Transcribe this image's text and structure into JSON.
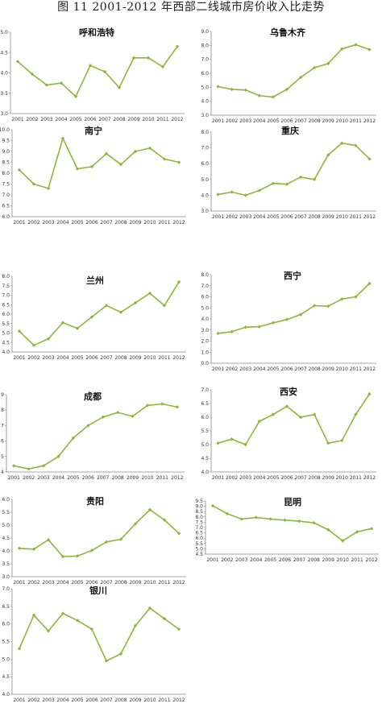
{
  "figure_title": "图 11   2001-2012 年西部二线城市房价收入比走势",
  "style": {
    "line_color": "#8DB73A",
    "axis_color": "#888888"
  },
  "chart_data": [
    {
      "type": "line",
      "title": "呼和浩特",
      "x": [
        "2001",
        "2002",
        "2003",
        "2004",
        "2005",
        "2006",
        "2007",
        "2008",
        "2009",
        "2010",
        "2011",
        "2012"
      ],
      "series": [
        {
          "values": [
            4.28,
            3.97,
            3.7,
            3.75,
            3.42,
            4.18,
            4.03,
            3.64,
            4.37,
            4.37,
            4.15,
            4.65
          ]
        }
      ],
      "ylim": [
        3.0,
        5.0
      ],
      "yticks": [
        "3.0",
        "3.5",
        "4.0",
        "4.5",
        "5.0"
      ],
      "grid": false
    },
    {
      "type": "line",
      "title": "乌鲁木齐",
      "x": [
        "2001",
        "2002",
        "2003",
        "2004",
        "2005",
        "2006",
        "2007",
        "2008",
        "2009",
        "2010",
        "2011",
        "2012"
      ],
      "series": [
        {
          "values": [
            5.05,
            4.85,
            4.8,
            4.4,
            4.3,
            4.85,
            5.7,
            6.4,
            6.7,
            7.75,
            8.05,
            7.7
          ]
        }
      ],
      "ylim": [
        3.0,
        9.0
      ],
      "yticks": [
        "3.0",
        "4.0",
        "5.0",
        "6.0",
        "7.0",
        "8.0",
        "9.0"
      ],
      "grid": false
    },
    {
      "type": "line",
      "title": "南宁",
      "x": [
        "2001",
        "2002",
        "2003",
        "2004",
        "2005",
        "2006",
        "2007",
        "2008",
        "2009",
        "2010",
        "2011",
        "2012"
      ],
      "series": [
        {
          "values": [
            8.15,
            7.5,
            7.3,
            9.6,
            8.2,
            8.3,
            8.9,
            8.4,
            9.0,
            9.15,
            8.65,
            8.5
          ]
        }
      ],
      "ylim": [
        6.0,
        10.0
      ],
      "yticks": [
        "6.0",
        "6.5",
        "7.0",
        "7.5",
        "8.0",
        "8.5",
        "9.0",
        "9.5",
        "10.0"
      ],
      "grid": false
    },
    {
      "type": "line",
      "title": "重庆",
      "x": [
        "2001",
        "2002",
        "2003",
        "2004",
        "2005",
        "2006",
        "2007",
        "2008",
        "2009",
        "2010",
        "2011",
        "2012"
      ],
      "series": [
        {
          "values": [
            4.05,
            4.2,
            4.0,
            4.3,
            4.75,
            4.7,
            5.15,
            5.0,
            6.55,
            7.3,
            7.15,
            6.3
          ]
        }
      ],
      "ylim": [
        3.0,
        8.0
      ],
      "yticks": [
        "3.0",
        "4.0",
        "5.0",
        "6.0",
        "7.0",
        "8.0"
      ],
      "grid": false
    },
    {
      "type": "line",
      "title": "兰州",
      "x": [
        "2001",
        "2002",
        "2003",
        "2004",
        "2005",
        "2006",
        "2007",
        "2008",
        "2009",
        "2010",
        "2011",
        "2012"
      ],
      "series": [
        {
          "values": [
            5.1,
            4.35,
            4.7,
            5.55,
            5.25,
            5.85,
            6.45,
            6.1,
            6.6,
            7.1,
            6.45,
            7.7
          ]
        }
      ],
      "ylim": [
        4.0,
        8.0
      ],
      "yticks": [
        "4.0",
        "4.5",
        "5.0",
        "5.5",
        "6.0",
        "6.5",
        "7.0",
        "7.5",
        "8.0"
      ],
      "grid": false
    },
    {
      "type": "line",
      "title": "西宁",
      "x": [
        "2001",
        "2002",
        "2003",
        "2004",
        "2005",
        "2006",
        "2007",
        "2008",
        "2009",
        "2010",
        "2011",
        "2012"
      ],
      "series": [
        {
          "values": [
            2.7,
            2.85,
            3.25,
            3.3,
            3.65,
            3.95,
            4.4,
            5.2,
            5.15,
            5.8,
            6.0,
            7.2
          ]
        }
      ],
      "ylim": [
        0.0,
        8.0
      ],
      "yticks": [
        "0.0",
        "1.0",
        "2.0",
        "3.0",
        "4.0",
        "5.0",
        "6.0",
        "7.0",
        "8.0"
      ],
      "grid": false
    },
    {
      "type": "line",
      "title": "成都",
      "x": [
        "2001",
        "2002",
        "2003",
        "2004",
        "2005",
        "2006",
        "2007",
        "2008",
        "2009",
        "2010",
        "2011",
        "2012"
      ],
      "series": [
        {
          "values": [
            4.4,
            4.2,
            4.4,
            5.0,
            6.2,
            7.0,
            7.55,
            7.85,
            7.6,
            8.3,
            8.4,
            8.2
          ]
        }
      ],
      "ylim": [
        4.0,
        9.0
      ],
      "yticks": [
        "4",
        "5",
        "6",
        "7",
        "8",
        "9"
      ],
      "grid": false
    },
    {
      "type": "line",
      "title": "西安",
      "x": [
        "2001",
        "2002",
        "2003",
        "2004",
        "2005",
        "2006",
        "2007",
        "2008",
        "2009",
        "2010",
        "2011",
        "2012"
      ],
      "series": [
        {
          "values": [
            5.05,
            5.2,
            5.0,
            5.85,
            6.1,
            6.4,
            6.0,
            6.1,
            5.05,
            5.15,
            6.1,
            6.85
          ]
        }
      ],
      "ylim": [
        4.0,
        7.0
      ],
      "yticks": [
        "4.0",
        "4.5",
        "5.0",
        "5.5",
        "6.0",
        "6.5",
        "7.0"
      ],
      "grid": false
    },
    {
      "type": "line",
      "title": "贵阳",
      "x": [
        "2001",
        "2002",
        "2003",
        "2004",
        "2005",
        "2006",
        "2007",
        "2008",
        "2009",
        "2010",
        "2011",
        "2012"
      ],
      "series": [
        {
          "values": [
            4.1,
            4.07,
            4.43,
            3.78,
            3.8,
            4.02,
            4.35,
            4.45,
            5.05,
            5.6,
            5.2,
            4.68
          ]
        }
      ],
      "ylim": [
        3.0,
        6.0
      ],
      "yticks": [
        "3.0",
        "3.5",
        "4.0",
        "4.5",
        "5.0",
        "5.5",
        "6.0"
      ],
      "grid": false
    },
    {
      "type": "line",
      "title": "昆明",
      "x": [
        "2001",
        "2002",
        "2003",
        "2004",
        "2005",
        "2006",
        "2007",
        "2008",
        "2009",
        "2010",
        "2011",
        "2012"
      ],
      "series": [
        {
          "values": [
            9.05,
            8.3,
            7.8,
            7.95,
            7.8,
            7.7,
            7.6,
            7.45,
            6.8,
            5.75,
            6.6,
            6.9
          ]
        }
      ],
      "ylim": [
        4.5,
        9.5
      ],
      "yticks": [
        "4.5",
        "5.0",
        "5.5",
        "6.0",
        "6.5",
        "7.0",
        "7.5",
        "8.0",
        "8.5",
        "9.0",
        "9.5"
      ],
      "grid": false
    },
    {
      "type": "line",
      "title": "银川",
      "x": [
        "2001",
        "2002",
        "2003",
        "2004",
        "2005",
        "2006",
        "2007",
        "2008",
        "2009",
        "2010",
        "2011",
        "2012"
      ],
      "series": [
        {
          "values": [
            5.3,
            6.25,
            5.8,
            6.3,
            6.1,
            5.85,
            4.95,
            5.15,
            5.95,
            6.45,
            6.15,
            5.85
          ]
        }
      ],
      "ylim": [
        4.0,
        7.0
      ],
      "yticks": [
        "4.0",
        "4.5",
        "5.0",
        "5.5",
        "6.0",
        "6.5",
        "7.0"
      ],
      "grid": false
    }
  ]
}
